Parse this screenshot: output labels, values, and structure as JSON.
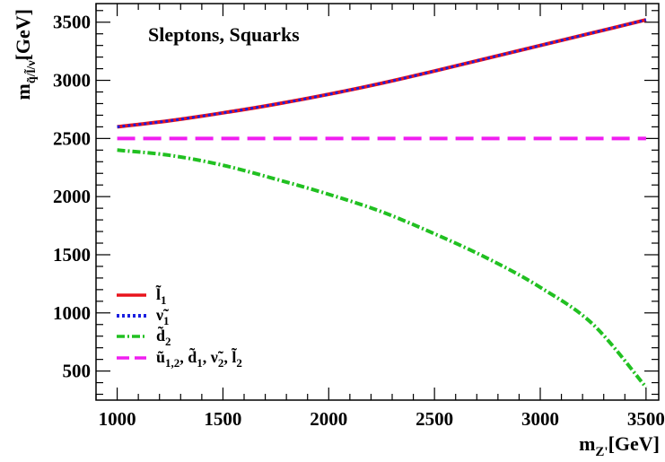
{
  "chart_data": {
    "type": "line",
    "title": "Sleptons, Squarks",
    "xlabel_main": "m",
    "xlabel_sub": "Z'",
    "xlabel_unit": "[GeV]",
    "ylabel_main": "m",
    "ylabel_sub": "q̃/l̃/ν̃",
    "ylabel_unit": "[GeV]",
    "xlim": [
      900,
      3560
    ],
    "ylim": [
      250,
      3660
    ],
    "xticks": [
      1000,
      1500,
      2000,
      2500,
      3000,
      3500
    ],
    "yticks": [
      500,
      1000,
      1500,
      2000,
      2500,
      3000,
      3500
    ],
    "x": [
      1000,
      1250,
      1500,
      1750,
      2000,
      2250,
      2500,
      2750,
      3000,
      3250,
      3500
    ],
    "series": [
      {
        "name": "l̃",
        "name_sub": "1",
        "color": "#e8141c",
        "style": "solid",
        "values": [
          2600,
          2653,
          2720,
          2795,
          2880,
          2975,
          3080,
          3190,
          3300,
          3410,
          3520
        ]
      },
      {
        "name": "ν̃",
        "name_sub": "1",
        "color": "#1a1fe0",
        "style": "dotted",
        "values": [
          2600,
          2653,
          2720,
          2795,
          2880,
          2975,
          3080,
          3190,
          3300,
          3410,
          3520
        ]
      },
      {
        "name": "d̃",
        "name_sub": "2",
        "color": "#21c021",
        "style": "dashdot",
        "values": [
          2400,
          2355,
          2270,
          2150,
          2020,
          1870,
          1680,
          1470,
          1220,
          900,
          360
        ]
      },
      {
        "name": "ũ",
        "name_sub": "1,2",
        "name_rest": ", d̃",
        "name_rest_sub": "1",
        "name_rest2": ", ν̃",
        "name_rest2_sub": "2",
        "name_rest3": ", l̃",
        "name_rest3_sub": "2",
        "color": "#f01ef0",
        "style": "dashed",
        "values": [
          2500,
          2500,
          2500,
          2500,
          2500,
          2500,
          2500,
          2500,
          2500,
          2500,
          2500
        ]
      }
    ]
  }
}
